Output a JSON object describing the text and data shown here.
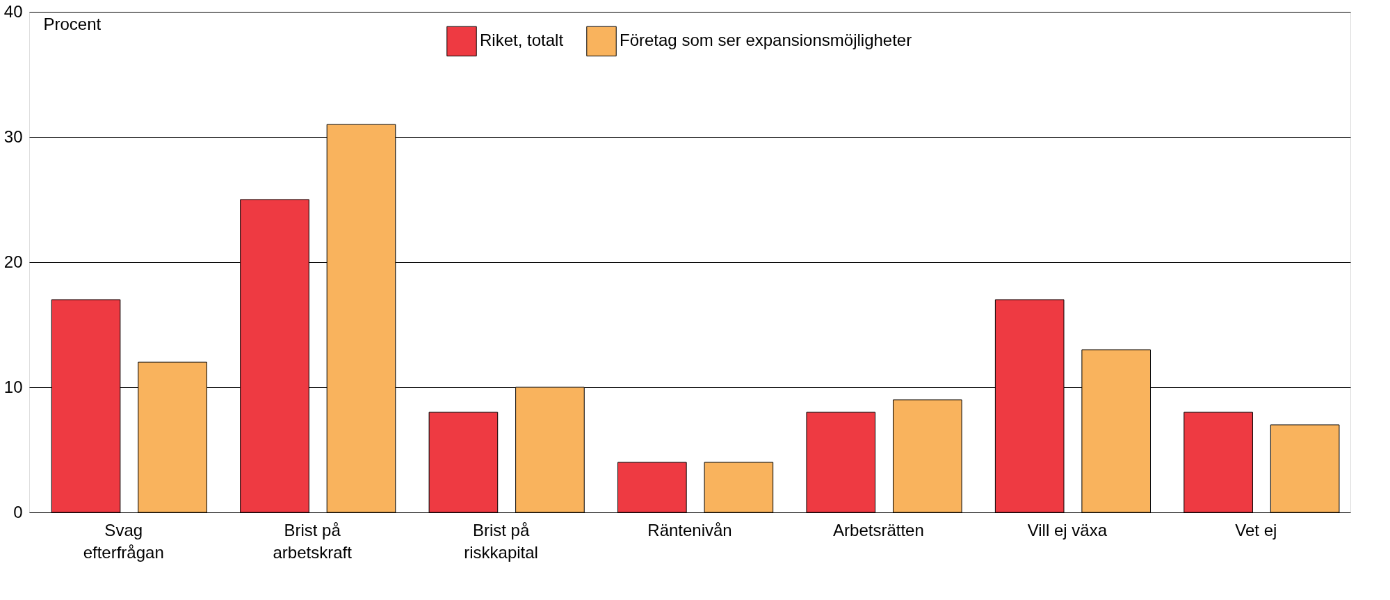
{
  "chart_data": {
    "type": "bar",
    "ylabel": "Procent",
    "categories": [
      "Svag\nefterfrågan",
      "Brist på\narbetskraft",
      "Brist på\nriskkapital",
      "Räntenivån",
      "Arbetsrätten",
      "Vill ej växa",
      "Vet ej"
    ],
    "series": [
      {
        "name": "Riket, totalt",
        "color": "#ee3a42",
        "values": [
          17,
          25,
          8,
          4,
          8,
          17,
          8
        ]
      },
      {
        "name": "Företag som ser expansionsmöjligheter",
        "color": "#f9b35d",
        "values": [
          12,
          31,
          10,
          4,
          9,
          13,
          7
        ]
      }
    ],
    "ylim": [
      0,
      40
    ],
    "yticks": [
      0,
      10,
      20,
      30,
      40
    ],
    "grid": "y",
    "legend": "top"
  }
}
